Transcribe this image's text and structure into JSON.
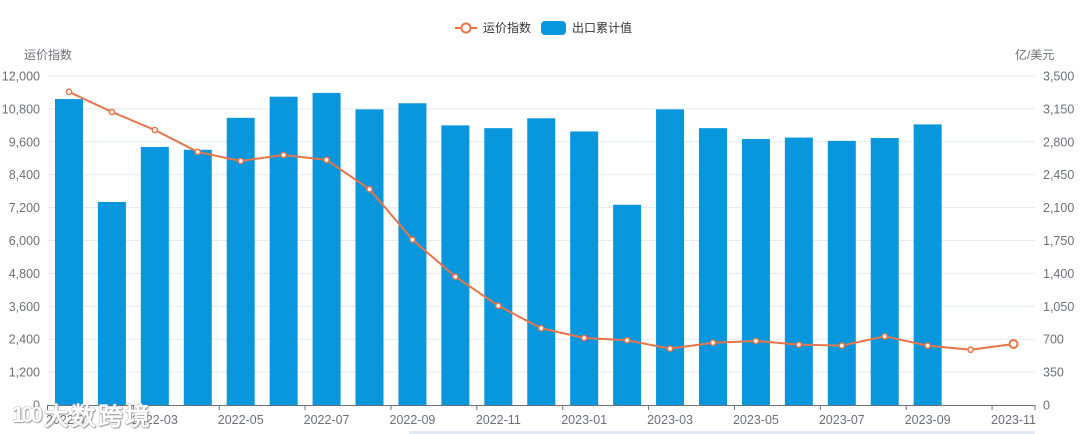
{
  "legend": {
    "items": [
      {
        "label": "运价指数",
        "type": "line",
        "color": "#e8744a"
      },
      {
        "label": "出口累计值",
        "type": "bar",
        "color": "#0897dd"
      }
    ]
  },
  "watermark": {
    "logo": "100",
    "text": "大数跨境"
  },
  "colors": {
    "bar": "#0897dd",
    "line": "#e8744a",
    "grid": "#e6eaf2",
    "axis_label": "#6e7079",
    "axis_line": "#6e7079"
  },
  "chart_data": {
    "type": "bar+line",
    "title": "",
    "categories": [
      "2022-01",
      "2022-02",
      "2022-03",
      "2022-04",
      "2022-05",
      "2022-06",
      "2022-07",
      "2022-08",
      "2022-09",
      "2022-10",
      "2022-11",
      "2022-12",
      "2023-01",
      "2023-02",
      "2023-03",
      "2023-04",
      "2023-05",
      "2023-06",
      "2023-07",
      "2023-08",
      "2023-09",
      "2023-10",
      "2023-11"
    ],
    "x_tick_labels": [
      "2022-01",
      "2022-03",
      "2022-05",
      "2022-07",
      "2022-09",
      "2022-11",
      "2023-01",
      "2023-03",
      "2023-05",
      "2023-07",
      "2023-09",
      "2023-11"
    ],
    "xlabel": "",
    "y_left": {
      "name": "运价指数",
      "min": 0,
      "max": 12000,
      "tick_labels": [
        "0",
        "1,200",
        "2,400",
        "3,600",
        "4,800",
        "6,000",
        "7,200",
        "8,400",
        "9,600",
        "10,800",
        "12,000"
      ]
    },
    "y_right": {
      "name": "亿/美元",
      "min": 0,
      "max": 3500,
      "tick_labels": [
        "0",
        "350",
        "700",
        "1,050",
        "1,400",
        "1,750",
        "2,100",
        "2,450",
        "2,800",
        "3,150",
        "3,500"
      ]
    },
    "grid": true,
    "legend_position": "top-center",
    "series": [
      {
        "name": "出口累计值",
        "type": "bar",
        "axis": "right",
        "values": [
          3255,
          2160,
          2745,
          2715,
          3055,
          3280,
          3320,
          3145,
          3210,
          2975,
          2945,
          3050,
          2910,
          2130,
          3145,
          2945,
          2830,
          2845,
          2810,
          2840,
          2985,
          null,
          null
        ]
      },
      {
        "name": "运价指数",
        "type": "line",
        "axis": "left",
        "values": [
          11420,
          10690,
          10030,
          9230,
          8900,
          9120,
          8940,
          7870,
          6030,
          4680,
          3620,
          2800,
          2445,
          2360,
          2055,
          2270,
          2335,
          2200,
          2165,
          2505,
          2165,
          2015,
          2225
        ],
        "emphasis_index": 22
      }
    ]
  }
}
